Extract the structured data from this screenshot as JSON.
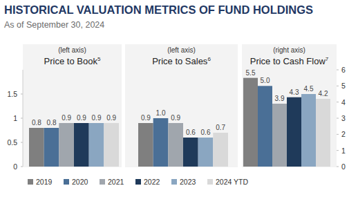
{
  "header": {
    "title": "HISTORICAL VALUATION METRICS OF FUND HOLDINGS",
    "subtitle": "As of September 30, 2024"
  },
  "chart_data": [
    {
      "type": "bar",
      "title": "Price to Book",
      "title_footnote": "5",
      "axis_label": "(left axis)",
      "categories": [
        "2019",
        "2020",
        "2021",
        "2022",
        "2023",
        "2024 YTD"
      ],
      "values": [
        0.8,
        0.8,
        0.9,
        0.9,
        0.9,
        0.9
      ],
      "colors": [
        "#7f7f7f",
        "#4a6f96",
        "#a0a6ad",
        "#1f3a5a",
        "#8aa6c1",
        "#d9d9d9"
      ],
      "ylim": [
        0,
        2
      ],
      "yticks": [
        0,
        0.5,
        1,
        1.5
      ],
      "tick_labels": "y",
      "data_labels": true,
      "legend": "bottom"
    },
    {
      "type": "bar",
      "title": "Price to Sales",
      "title_footnote": "6",
      "axis_label": "(left axis)",
      "categories": [
        "2019",
        "2020",
        "2021",
        "2022",
        "2023",
        "2024 YTD"
      ],
      "values": [
        0.9,
        1,
        0.9,
        0.6,
        0.6,
        0.7
      ],
      "value_labels": [
        "0.9",
        "1.0",
        "0.9",
        "0.6",
        "0.6",
        "0.7"
      ],
      "colors": [
        "#7f7f7f",
        "#4a6f96",
        "#a0a6ad",
        "#1f3a5a",
        "#8aa6c1",
        "#d9d9d9"
      ],
      "ylim": [
        0,
        2
      ],
      "tick_labels": false,
      "data_labels": true
    },
    {
      "type": "bar",
      "title": "Price to Cash Flow",
      "title_footnote": "7",
      "axis_label": "(right axis)",
      "categories": [
        "2019",
        "2020",
        "2021",
        "2022",
        "2023",
        "2024 YTD"
      ],
      "values": [
        5.5,
        5,
        3.9,
        4.3,
        4.5,
        4.2
      ],
      "value_labels": [
        "5.5",
        "5.0",
        "3.9",
        "4.3",
        "4.5",
        "4.2"
      ],
      "colors": [
        "#7f7f7f",
        "#4a6f96",
        "#a0a6ad",
        "#1f3a5a",
        "#8aa6c1",
        "#d9d9d9"
      ],
      "y2lim": [
        0,
        6
      ],
      "y2ticks": [
        0,
        1,
        2,
        3,
        4,
        5,
        6
      ],
      "tick_labels": "y",
      "data_labels": true
    }
  ]
}
